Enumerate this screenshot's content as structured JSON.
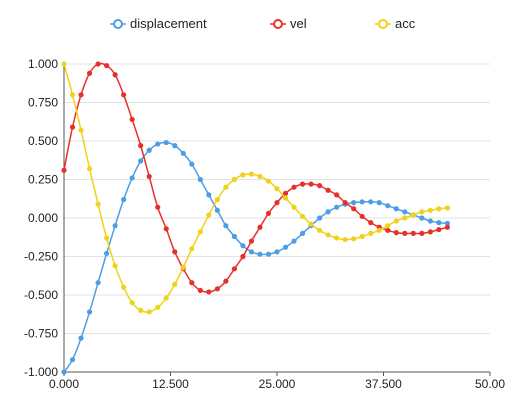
{
  "chart_data": {
    "type": "line",
    "legend_position": "top",
    "grid": true,
    "xlim": [
      0,
      50
    ],
    "ylim": [
      -1,
      1
    ],
    "xticks": [
      "0.000",
      "12.500",
      "25.000",
      "37.500",
      "50.00"
    ],
    "yticks": [
      "1.000",
      "0.750",
      "0.500",
      "0.250",
      "0.000",
      "-0.250",
      "-0.500",
      "-0.750",
      "-1.000"
    ],
    "series": [
      {
        "name": "displacement",
        "color": "#4d9de5",
        "points": [
          [
            0,
            -1.0
          ],
          [
            1,
            -0.92
          ],
          [
            2,
            -0.78
          ],
          [
            3,
            -0.61
          ],
          [
            4,
            -0.42
          ],
          [
            5,
            -0.23
          ],
          [
            6,
            -0.05
          ],
          [
            7,
            0.12
          ],
          [
            8,
            0.26
          ],
          [
            9,
            0.37
          ],
          [
            10,
            0.44
          ],
          [
            11,
            0.48
          ],
          [
            12,
            0.49
          ],
          [
            13,
            0.47
          ],
          [
            14,
            0.42
          ],
          [
            15,
            0.35
          ],
          [
            16,
            0.25
          ],
          [
            17,
            0.15
          ],
          [
            18,
            0.05
          ],
          [
            19,
            -0.05
          ],
          [
            20,
            -0.12
          ],
          [
            21,
            -0.18
          ],
          [
            22,
            -0.22
          ],
          [
            23,
            -0.235
          ],
          [
            24,
            -0.235
          ],
          [
            25,
            -0.22
          ],
          [
            26,
            -0.19
          ],
          [
            27,
            -0.15
          ],
          [
            28,
            -0.1
          ],
          [
            29,
            -0.05
          ],
          [
            30,
            0.0
          ],
          [
            31,
            0.04
          ],
          [
            32,
            0.07
          ],
          [
            33,
            0.09
          ],
          [
            34,
            0.1
          ],
          [
            35,
            0.105
          ],
          [
            36,
            0.105
          ],
          [
            37,
            0.1
          ],
          [
            38,
            0.08
          ],
          [
            39,
            0.06
          ],
          [
            40,
            0.04
          ],
          [
            41,
            0.02
          ],
          [
            42,
            0.0
          ],
          [
            43,
            -0.02
          ],
          [
            44,
            -0.03
          ],
          [
            45,
            -0.035
          ]
        ]
      },
      {
        "name": "vel",
        "color": "#e8302b",
        "points": [
          [
            0,
            0.31
          ],
          [
            1,
            0.59
          ],
          [
            2,
            0.8
          ],
          [
            3,
            0.94
          ],
          [
            4,
            1.0
          ],
          [
            5,
            0.99
          ],
          [
            6,
            0.93
          ],
          [
            7,
            0.8
          ],
          [
            8,
            0.64
          ],
          [
            9,
            0.47
          ],
          [
            10,
            0.27
          ],
          [
            11,
            0.07
          ],
          [
            12,
            -0.07
          ],
          [
            13,
            -0.22
          ],
          [
            14,
            -0.33
          ],
          [
            15,
            -0.42
          ],
          [
            16,
            -0.47
          ],
          [
            17,
            -0.48
          ],
          [
            18,
            -0.46
          ],
          [
            19,
            -0.41
          ],
          [
            20,
            -0.33
          ],
          [
            21,
            -0.25
          ],
          [
            22,
            -0.15
          ],
          [
            23,
            -0.06
          ],
          [
            24,
            0.03
          ],
          [
            25,
            0.1
          ],
          [
            26,
            0.16
          ],
          [
            27,
            0.2
          ],
          [
            28,
            0.22
          ],
          [
            29,
            0.22
          ],
          [
            30,
            0.21
          ],
          [
            31,
            0.18
          ],
          [
            32,
            0.15
          ],
          [
            33,
            0.1
          ],
          [
            34,
            0.06
          ],
          [
            35,
            0.01
          ],
          [
            36,
            -0.03
          ],
          [
            37,
            -0.06
          ],
          [
            38,
            -0.08
          ],
          [
            39,
            -0.095
          ],
          [
            40,
            -0.1
          ],
          [
            41,
            -0.1
          ],
          [
            42,
            -0.1
          ],
          [
            43,
            -0.09
          ],
          [
            44,
            -0.075
          ],
          [
            45,
            -0.06
          ]
        ]
      },
      {
        "name": "acc",
        "color": "#f0d21a",
        "points": [
          [
            0,
            1.0
          ],
          [
            1,
            0.8
          ],
          [
            2,
            0.57
          ],
          [
            3,
            0.32
          ],
          [
            4,
            0.09
          ],
          [
            5,
            -0.13
          ],
          [
            6,
            -0.31
          ],
          [
            7,
            -0.45
          ],
          [
            8,
            -0.55
          ],
          [
            9,
            -0.6
          ],
          [
            10,
            -0.61
          ],
          [
            11,
            -0.58
          ],
          [
            12,
            -0.52
          ],
          [
            13,
            -0.43
          ],
          [
            14,
            -0.32
          ],
          [
            15,
            -0.2
          ],
          [
            16,
            -0.09
          ],
          [
            17,
            0.02
          ],
          [
            18,
            0.12
          ],
          [
            19,
            0.2
          ],
          [
            20,
            0.25
          ],
          [
            21,
            0.28
          ],
          [
            22,
            0.285
          ],
          [
            23,
            0.27
          ],
          [
            24,
            0.24
          ],
          [
            25,
            0.19
          ],
          [
            26,
            0.13
          ],
          [
            27,
            0.07
          ],
          [
            28,
            0.01
          ],
          [
            29,
            -0.04
          ],
          [
            30,
            -0.08
          ],
          [
            31,
            -0.11
          ],
          [
            32,
            -0.13
          ],
          [
            33,
            -0.14
          ],
          [
            34,
            -0.135
          ],
          [
            35,
            -0.12
          ],
          [
            36,
            -0.1
          ],
          [
            37,
            -0.08
          ],
          [
            38,
            -0.05
          ],
          [
            39,
            -0.02
          ],
          [
            40,
            0.0
          ],
          [
            41,
            0.02
          ],
          [
            42,
            0.04
          ],
          [
            43,
            0.05
          ],
          [
            44,
            0.06
          ],
          [
            45,
            0.065
          ]
        ]
      }
    ]
  }
}
